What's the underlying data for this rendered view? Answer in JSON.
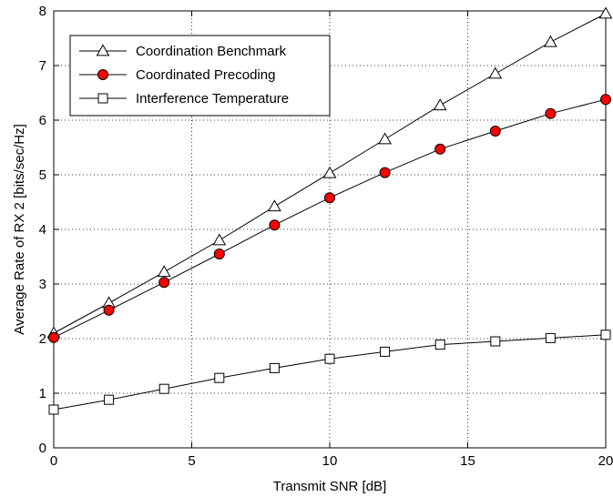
{
  "chart_data": {
    "type": "line",
    "title": "",
    "xlabel": "Transmit SNR [dB]",
    "ylabel": "Average Rate of RX 2 [bits/sec/Hz]",
    "xlim": [
      0,
      20
    ],
    "ylim": [
      0,
      8
    ],
    "xticks": [
      0,
      5,
      10,
      15,
      20
    ],
    "yticks": [
      0,
      1,
      2,
      3,
      4,
      5,
      6,
      7,
      8
    ],
    "grid": true,
    "legend_position": "top-left",
    "x": [
      0,
      2,
      4,
      6,
      8,
      10,
      12,
      14,
      16,
      18,
      20
    ],
    "series": [
      {
        "name": "Coordination Benchmark",
        "marker": "triangle",
        "marker_color": "#ffffff",
        "values": [
          2.1,
          2.65,
          3.22,
          3.8,
          4.42,
          5.03,
          5.65,
          6.27,
          6.85,
          7.43,
          7.95
        ]
      },
      {
        "name": "Coordinated Precoding",
        "marker": "circle",
        "marker_color": "#ff0000",
        "values": [
          2.02,
          2.52,
          3.03,
          3.55,
          4.08,
          4.58,
          5.04,
          5.47,
          5.8,
          6.12,
          6.38
        ]
      },
      {
        "name": "Interference Temperature",
        "marker": "square",
        "marker_color": "#ffffff",
        "values": [
          0.7,
          0.88,
          1.08,
          1.28,
          1.46,
          1.63,
          1.76,
          1.89,
          1.95,
          2.01,
          2.07
        ]
      }
    ]
  }
}
